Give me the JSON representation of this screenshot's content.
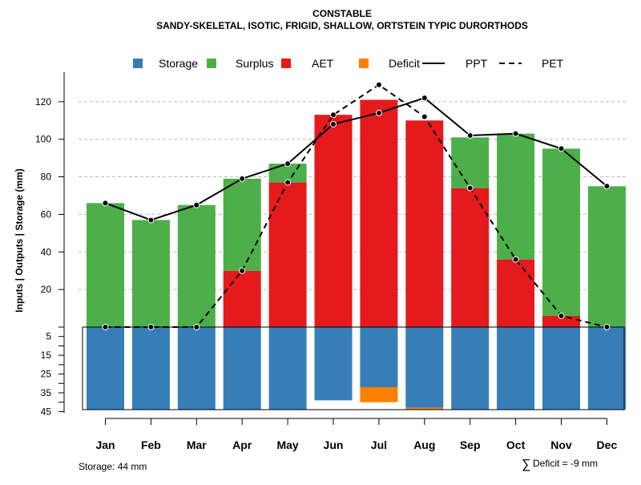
{
  "chart_data": {
    "type": "bar",
    "title": "CONSTABLE",
    "subtitle": "SANDY-SKELETAL, ISOTIC, FRIGID, SHALLOW, ORTSTEIN TYPIC DURORTHODS",
    "ylabel": "Inputs | Outputs | Storage    (mm)",
    "xlabel": "",
    "ylim": [
      -45,
      130
    ],
    "categories": [
      "Jan",
      "Feb",
      "Mar",
      "Apr",
      "May",
      "Jun",
      "Jul",
      "Aug",
      "Sep",
      "Oct",
      "Nov",
      "Dec"
    ],
    "series": [
      {
        "name": "AET",
        "color": "#E41A1C",
        "values": [
          0,
          0,
          0,
          30,
          77,
          113,
          121,
          110,
          74,
          36,
          6,
          0
        ]
      },
      {
        "name": "Surplus",
        "color": "#4DAF4A",
        "values": [
          66,
          57,
          65,
          49,
          10,
          0,
          0,
          0,
          27,
          67,
          89,
          75
        ]
      },
      {
        "name": "Storage",
        "color": "#377EB8",
        "values": [
          44,
          44,
          44,
          44,
          44,
          39,
          32,
          43,
          44,
          44,
          44,
          44
        ]
      },
      {
        "name": "Deficit",
        "color": "#FF7F00",
        "values": [
          0,
          0,
          0,
          0,
          0,
          0,
          8,
          1,
          0,
          0,
          0,
          0
        ]
      },
      {
        "name": "PPT",
        "values": [
          66,
          57,
          65,
          79,
          87,
          108,
          114,
          122,
          102,
          103,
          95,
          75
        ]
      },
      {
        "name": "PET",
        "values": [
          0,
          0,
          0,
          30,
          77,
          113,
          129,
          112,
          74,
          36,
          6,
          0
        ]
      }
    ],
    "y_ticks_top": [
      20,
      40,
      60,
      80,
      100,
      120
    ],
    "y_ticks_bottom": [
      5,
      15,
      25,
      35,
      45
    ],
    "legend": [
      {
        "label": "Storage",
        "kind": "box",
        "color": "#377EB8"
      },
      {
        "label": "Surplus",
        "kind": "box",
        "color": "#4DAF4A"
      },
      {
        "label": "AET",
        "kind": "box",
        "color": "#E41A1C"
      },
      {
        "label": "Deficit",
        "kind": "box",
        "color": "#FF7F00"
      },
      {
        "label": "PPT",
        "kind": "solid"
      },
      {
        "label": "PET",
        "kind": "dashed"
      }
    ],
    "legend_position": "top",
    "grid": true,
    "annotations": {
      "storage": "Storage: 44 mm",
      "deficit_symbol": "∑",
      "deficit": "Deficit = -9 mm"
    }
  }
}
